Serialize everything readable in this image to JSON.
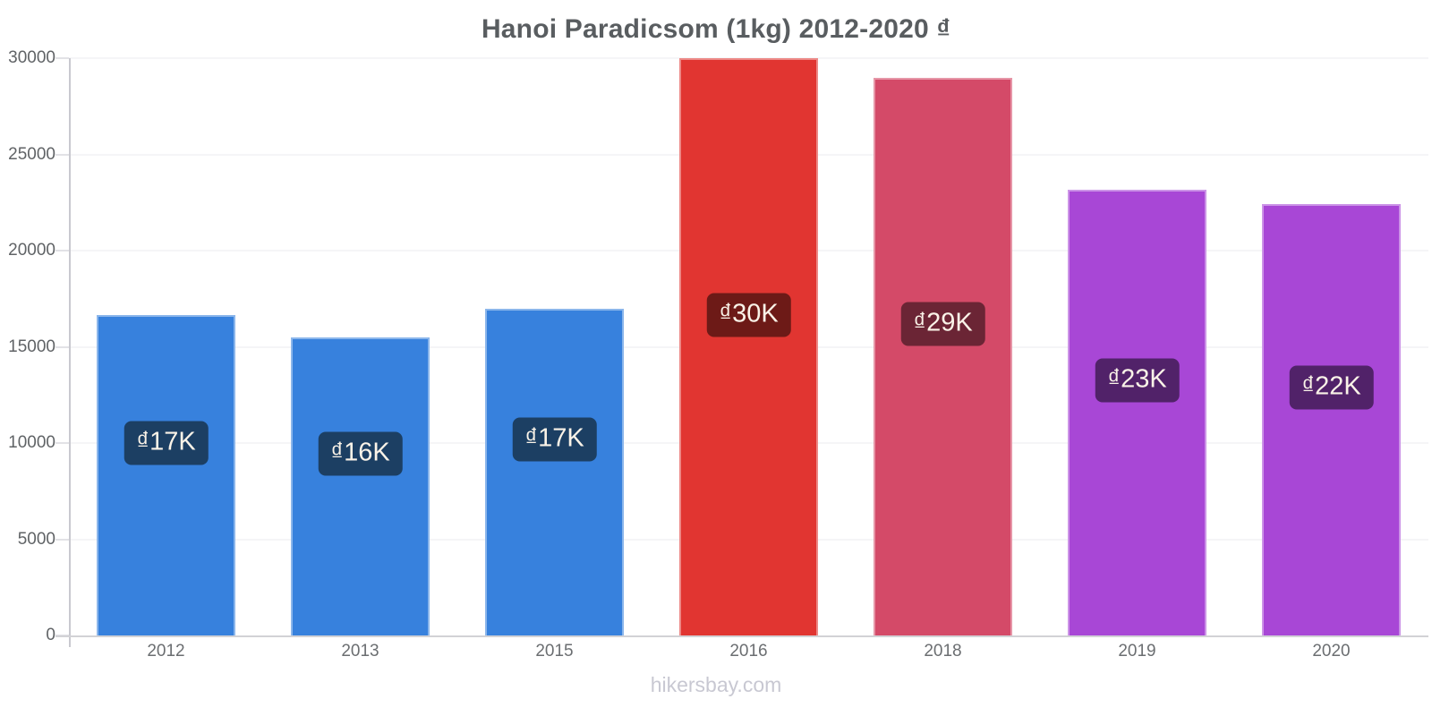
{
  "page": {
    "title": "Hanoi Paradicsom (1kg) 2012-2020 ₫",
    "footer": "hikersbay.com"
  },
  "chart_data": {
    "type": "bar",
    "title": "Hanoi Paradicsom (1kg) 2012-2020 ₫",
    "categories": [
      "2012",
      "2013",
      "2015",
      "2016",
      "2018",
      "2019",
      "2020"
    ],
    "values": [
      16650,
      15500,
      17000,
      30000,
      29000,
      23150,
      22400
    ],
    "bar_labels": [
      "₫17K",
      "₫16K",
      "₫17K",
      "₫30K",
      "₫29K",
      "₫23K",
      "₫22K"
    ],
    "bar_colors": [
      "#3781dd",
      "#3781dd",
      "#3781dd",
      "#e13531",
      "#d44a68",
      "#a847d6",
      "#a847d6"
    ],
    "bar_label_bg_colors": [
      "#1c3f63",
      "#1c3f63",
      "#1c3f63",
      "#6d1a17",
      "#6b2535",
      "#512269",
      "#512269"
    ],
    "bar_label_text_color": "#faf3e8",
    "xlabel": "",
    "ylabel": "",
    "ylim": [
      0,
      30000
    ],
    "yticks": [
      0,
      5000,
      10000,
      15000,
      20000,
      25000,
      30000
    ],
    "grid": "horizontal",
    "legend": "none",
    "footer": "hikersbay.com"
  }
}
